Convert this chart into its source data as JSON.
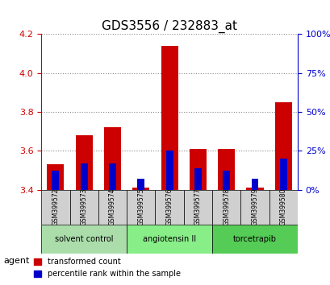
{
  "title": "GDS3556 / 232883_at",
  "samples": [
    "GSM399572",
    "GSM399573",
    "GSM399574",
    "GSM399575",
    "GSM399576",
    "GSM399577",
    "GSM399578",
    "GSM399579",
    "GSM399580"
  ],
  "red_values": [
    3.53,
    3.68,
    3.72,
    3.41,
    4.14,
    3.61,
    3.61,
    3.41,
    3.85
  ],
  "blue_values": [
    0.12,
    0.17,
    0.17,
    0.07,
    0.25,
    0.14,
    0.12,
    0.07,
    0.2
  ],
  "ylim_left": [
    3.4,
    4.2
  ],
  "ylim_right": [
    0,
    100
  ],
  "yticks_left": [
    3.4,
    3.6,
    3.8,
    4.0,
    4.2
  ],
  "yticks_right": [
    0,
    25,
    50,
    75,
    100
  ],
  "groups": [
    {
      "label": "solvent control",
      "samples": [
        0,
        1,
        2
      ],
      "color": "#90ee90"
    },
    {
      "label": "angiotensin II",
      "samples": [
        3,
        4,
        5
      ],
      "color": "#b0f0a0"
    },
    {
      "label": "torcetrapib",
      "samples": [
        6,
        7,
        8
      ],
      "color": "#66dd66"
    }
  ],
  "bar_bottom": 3.4,
  "bar_width": 0.6,
  "red_color": "#cc0000",
  "blue_color": "#0000cc",
  "blue_bar_width": 0.25,
  "grid_color": "#888888",
  "bg_plot": "#ffffff",
  "bg_table_sample": "#d0d0d0",
  "bg_table_agent_group1": "#aaddaa",
  "bg_table_agent_group2": "#88cc88",
  "bg_table_agent_group3": "#55bb55",
  "legend_red_label": "transformed count",
  "legend_blue_label": "percentile rank within the sample",
  "agent_label": "agent",
  "left_axis_color": "#cc0000",
  "right_axis_color": "#0000cc",
  "right_tick_labels": [
    "0%",
    "25%",
    "50%",
    "75%",
    "100%"
  ]
}
